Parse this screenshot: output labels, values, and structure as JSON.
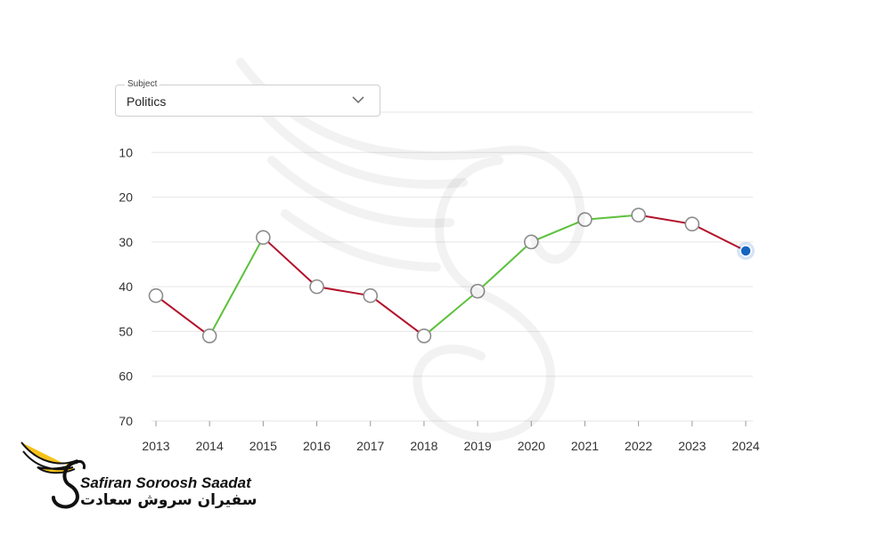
{
  "controls": {
    "subject_legend": "Subject",
    "subject_value": "Politics"
  },
  "brand": {
    "name_en": "Safiran Soroosh Saadat",
    "name_fa": "سفیران سروش سعادت"
  },
  "colors": {
    "up": "#5cc13c",
    "down": "#b3112b",
    "latest_point": "#1565c0",
    "point_stroke": "#8c8c8c",
    "grid": "#e6e6e6",
    "brand_gold": "#f6c21a"
  },
  "chart_data": {
    "type": "line",
    "title": "",
    "xlabel": "",
    "ylabel": "",
    "x": [
      "2013",
      "2014",
      "2015",
      "2016",
      "2017",
      "2018",
      "2019",
      "2020",
      "2021",
      "2022",
      "2023",
      "2024"
    ],
    "series": [
      {
        "values": [
          42,
          51,
          29,
          40,
          42,
          51,
          41,
          30,
          25,
          24,
          26,
          32
        ]
      }
    ],
    "y_ticks": [
      "1",
      "10",
      "20",
      "30",
      "40",
      "50",
      "60",
      "70"
    ],
    "ylim": [
      1,
      70
    ],
    "y_reversed": true,
    "grid": true,
    "legend": "none",
    "segment_coloring": "green when rank improves, red when rank worsens",
    "highlight_last_point": true
  }
}
